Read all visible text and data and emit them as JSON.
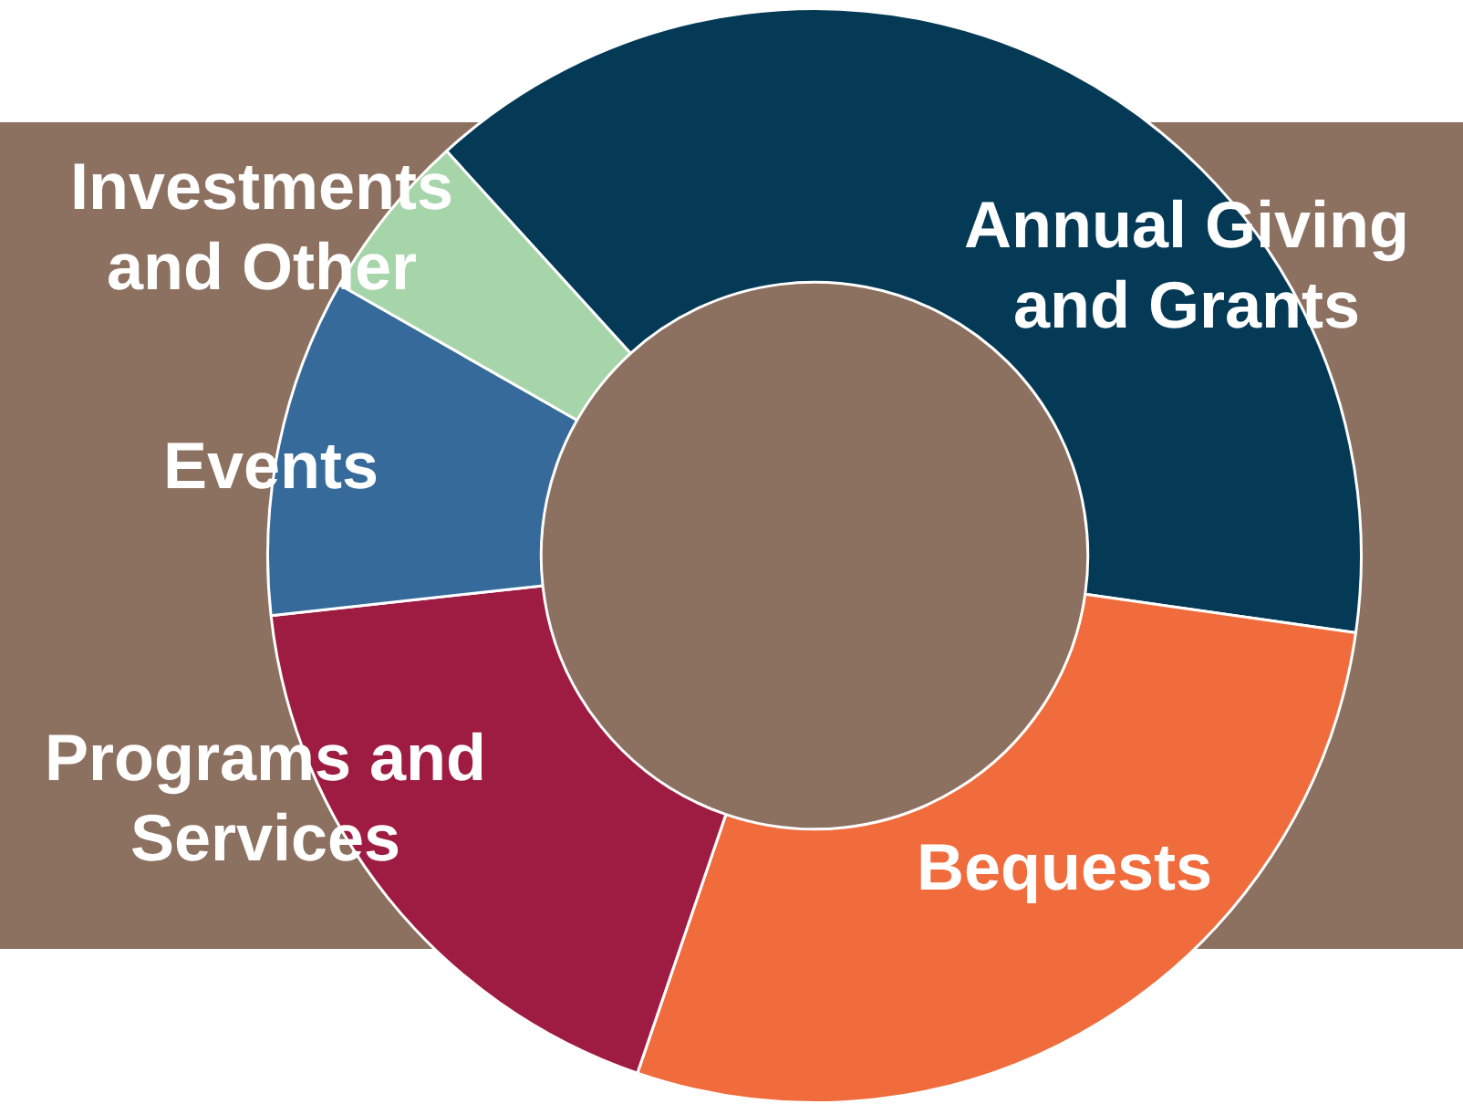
{
  "chart_data": {
    "type": "donut",
    "categories": [
      "Annual Giving and Grants",
      "Bequests",
      "Programs and Services",
      "Events",
      "Investments and Other"
    ],
    "values": [
      39,
      28,
      18,
      10,
      5
    ],
    "colors": [
      "#053a57",
      "#f06c3c",
      "#9e1b42",
      "#356a9a",
      "#a6d5aa"
    ],
    "legend": false
  }
}
